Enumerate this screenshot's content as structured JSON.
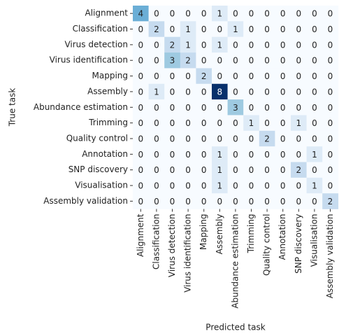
{
  "chart_data": {
    "type": "heatmap",
    "xlabel": "Predicted task",
    "ylabel": "True task",
    "x_categories": [
      "Alignment",
      "Classification",
      "Virus detection",
      "Virus identification",
      "Mapping",
      "Assembly",
      "Abundance estimation",
      "Trimming",
      "Quality control",
      "Annotation",
      "SNP discovery",
      "Visualisation",
      "Assembly validation"
    ],
    "y_categories": [
      "Alignment",
      "Classification",
      "Virus detection",
      "Virus identification",
      "Mapping",
      "Assembly",
      "Abundance estimation",
      "Trimming",
      "Quality control",
      "Annotation",
      "SNP discovery",
      "Visualisation",
      "Assembly validation"
    ],
    "values": [
      [
        4,
        0,
        0,
        0,
        0,
        1,
        0,
        0,
        0,
        0,
        0,
        0,
        0
      ],
      [
        0,
        2,
        0,
        1,
        0,
        0,
        1,
        0,
        0,
        0,
        0,
        0,
        0
      ],
      [
        0,
        0,
        2,
        1,
        0,
        1,
        0,
        0,
        0,
        0,
        0,
        0,
        0
      ],
      [
        0,
        0,
        3,
        2,
        0,
        0,
        0,
        0,
        0,
        0,
        0,
        0,
        0
      ],
      [
        0,
        0,
        0,
        0,
        2,
        0,
        0,
        0,
        0,
        0,
        0,
        0,
        0
      ],
      [
        0,
        1,
        0,
        0,
        0,
        8,
        0,
        0,
        0,
        0,
        0,
        0,
        0
      ],
      [
        0,
        0,
        0,
        0,
        0,
        0,
        3,
        0,
        0,
        0,
        0,
        0,
        0
      ],
      [
        0,
        0,
        0,
        0,
        0,
        0,
        0,
        1,
        0,
        0,
        1,
        0,
        0
      ],
      [
        0,
        0,
        0,
        0,
        0,
        0,
        0,
        0,
        2,
        0,
        0,
        0,
        0
      ],
      [
        0,
        0,
        0,
        0,
        0,
        1,
        0,
        0,
        0,
        0,
        0,
        1,
        0
      ],
      [
        0,
        0,
        0,
        0,
        0,
        1,
        0,
        0,
        0,
        0,
        2,
        0,
        0
      ],
      [
        0,
        0,
        0,
        0,
        0,
        1,
        0,
        0,
        0,
        0,
        0,
        1,
        0
      ],
      [
        0,
        0,
        0,
        0,
        0,
        0,
        0,
        0,
        0,
        0,
        0,
        0,
        2
      ]
    ],
    "colormap": "Blues"
  }
}
